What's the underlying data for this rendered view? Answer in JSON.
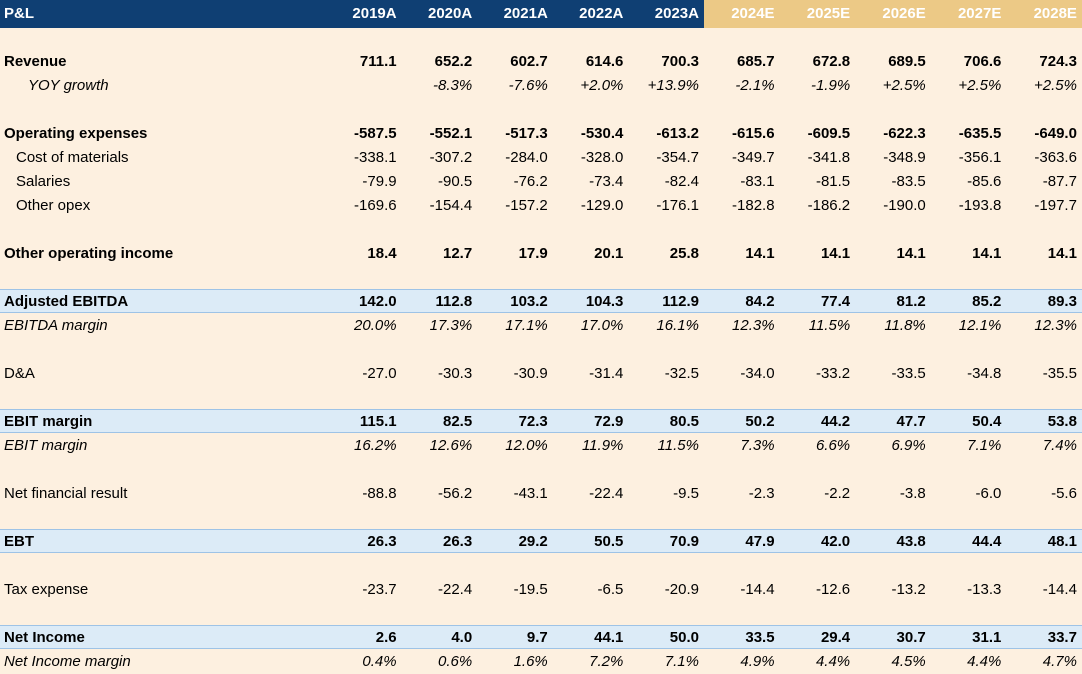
{
  "header": {
    "title": "P&L",
    "years": [
      "2019A",
      "2020A",
      "2021A",
      "2022A",
      "2023A",
      "2024E",
      "2025E",
      "2026E",
      "2027E",
      "2028E"
    ]
  },
  "rows": {
    "revenue": {
      "label": "Revenue",
      "values": [
        "711.1",
        "652.2",
        "602.7",
        "614.6",
        "700.3",
        "685.7",
        "672.8",
        "689.5",
        "706.6",
        "724.3"
      ]
    },
    "yoy_growth": {
      "label": "YOY growth",
      "values": [
        "",
        "-8.3%",
        "-7.6%",
        "+2.0%",
        "+13.9%",
        "-2.1%",
        "-1.9%",
        "+2.5%",
        "+2.5%",
        "+2.5%"
      ]
    },
    "operating_expenses": {
      "label": "Operating expenses",
      "values": [
        "-587.5",
        "-552.1",
        "-517.3",
        "-530.4",
        "-613.2",
        "-615.6",
        "-609.5",
        "-622.3",
        "-635.5",
        "-649.0"
      ]
    },
    "cost_of_materials": {
      "label": "Cost of materials",
      "values": [
        "-338.1",
        "-307.2",
        "-284.0",
        "-328.0",
        "-354.7",
        "-349.7",
        "-341.8",
        "-348.9",
        "-356.1",
        "-363.6"
      ]
    },
    "salaries": {
      "label": "Salaries",
      "values": [
        "-79.9",
        "-90.5",
        "-76.2",
        "-73.4",
        "-82.4",
        "-83.1",
        "-81.5",
        "-83.5",
        "-85.6",
        "-87.7"
      ]
    },
    "other_opex": {
      "label": "Other opex",
      "values": [
        "-169.6",
        "-154.4",
        "-157.2",
        "-129.0",
        "-176.1",
        "-182.8",
        "-186.2",
        "-190.0",
        "-193.8",
        "-197.7"
      ]
    },
    "other_operating_income": {
      "label": "Other operating income",
      "values": [
        "18.4",
        "12.7",
        "17.9",
        "20.1",
        "25.8",
        "14.1",
        "14.1",
        "14.1",
        "14.1",
        "14.1"
      ]
    },
    "adjusted_ebitda": {
      "label": "Adjusted EBITDA",
      "values": [
        "142.0",
        "112.8",
        "103.2",
        "104.3",
        "112.9",
        "84.2",
        "77.4",
        "81.2",
        "85.2",
        "89.3"
      ]
    },
    "ebitda_margin": {
      "label": "EBITDA margin",
      "values": [
        "20.0%",
        "17.3%",
        "17.1%",
        "17.0%",
        "16.1%",
        "12.3%",
        "11.5%",
        "11.8%",
        "12.1%",
        "12.3%"
      ]
    },
    "da": {
      "label": "D&A",
      "values": [
        "-27.0",
        "-30.3",
        "-30.9",
        "-31.4",
        "-32.5",
        "-34.0",
        "-33.2",
        "-33.5",
        "-34.8",
        "-35.5"
      ]
    },
    "ebit": {
      "label": "EBIT margin",
      "values": [
        "115.1",
        "82.5",
        "72.3",
        "72.9",
        "80.5",
        "50.2",
        "44.2",
        "47.7",
        "50.4",
        "53.8"
      ]
    },
    "ebit_margin": {
      "label": "EBIT margin",
      "values": [
        "16.2%",
        "12.6%",
        "12.0%",
        "11.9%",
        "11.5%",
        "7.3%",
        "6.6%",
        "6.9%",
        "7.1%",
        "7.4%"
      ]
    },
    "net_financial_result": {
      "label": "Net financial result",
      "values": [
        "-88.8",
        "-56.2",
        "-43.1",
        "-22.4",
        "-9.5",
        "-2.3",
        "-2.2",
        "-3.8",
        "-6.0",
        "-5.6"
      ]
    },
    "ebt": {
      "label": "EBT",
      "values": [
        "26.3",
        "26.3",
        "29.2",
        "50.5",
        "70.9",
        "47.9",
        "42.0",
        "43.8",
        "44.4",
        "48.1"
      ]
    },
    "tax_expense": {
      "label": "Tax expense",
      "values": [
        "-23.7",
        "-22.4",
        "-19.5",
        "-6.5",
        "-20.9",
        "-14.4",
        "-12.6",
        "-13.2",
        "-13.3",
        "-14.4"
      ]
    },
    "net_income": {
      "label": "Net Income",
      "values": [
        "2.6",
        "4.0",
        "9.7",
        "44.1",
        "50.0",
        "33.5",
        "29.4",
        "30.7",
        "31.1",
        "33.7"
      ]
    },
    "net_income_margin": {
      "label": "Net Income margin",
      "values": [
        "0.4%",
        "0.6%",
        "1.6%",
        "7.2%",
        "7.1%",
        "4.9%",
        "4.4%",
        "4.5%",
        "4.4%",
        "4.7%"
      ]
    }
  },
  "colors": {
    "header_bg": "#0f3f73",
    "estimate_header_bg": "#ecc986",
    "sheet_bg": "#fdf0e0",
    "band_bg": "#dcebf7"
  }
}
